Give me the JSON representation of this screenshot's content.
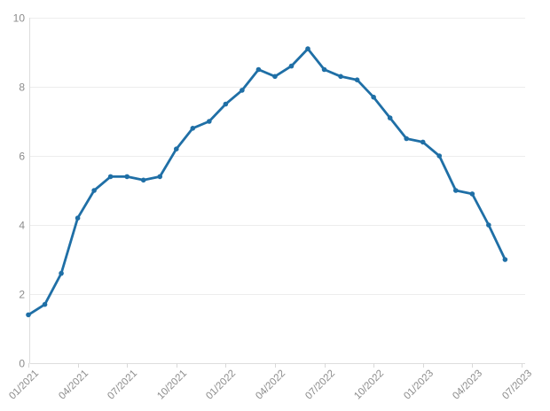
{
  "chart_data": {
    "type": "line",
    "title": "",
    "legend": "none",
    "grid": true,
    "marker": "circle",
    "x": [
      "01/2021",
      "02/2021",
      "03/2021",
      "04/2021",
      "05/2021",
      "06/2021",
      "07/2021",
      "08/2021",
      "09/2021",
      "10/2021",
      "11/2021",
      "12/2021",
      "01/2022",
      "02/2022",
      "03/2022",
      "04/2022",
      "05/2022",
      "06/2022",
      "07/2022",
      "08/2022",
      "09/2022",
      "10/2022",
      "11/2022",
      "12/2022",
      "01/2023",
      "02/2023",
      "03/2023",
      "04/2023",
      "05/2023",
      "06/2023"
    ],
    "values": [
      1.4,
      1.7,
      2.6,
      4.2,
      5.0,
      5.4,
      5.4,
      5.3,
      5.4,
      6.2,
      6.8,
      7.0,
      7.5,
      7.9,
      8.5,
      8.3,
      8.6,
      9.1,
      8.5,
      8.3,
      8.2,
      7.7,
      7.1,
      6.5,
      6.4,
      6.0,
      5.0,
      4.9,
      4.0,
      3.0
    ],
    "x_tick_labels": [
      "01/2021",
      "04/2021",
      "07/2021",
      "10/2021",
      "01/2022",
      "04/2022",
      "07/2022",
      "10/2022",
      "01/2023",
      "04/2023",
      "07/2023"
    ],
    "x_tick_step_months": 3,
    "x_label_rotation_deg": -45,
    "y_ticks": [
      0,
      2,
      4,
      6,
      8,
      10
    ],
    "ylim": [
      0,
      10
    ],
    "xlabel": "",
    "ylabel": "",
    "colors": {
      "line": "#1f6fa6",
      "marker": "#1f6fa6",
      "grid": "#ededed",
      "axis": "#dddddd",
      "tick": "#d9d9d9",
      "label": "#8c8c8c",
      "background": "#ffffff"
    }
  }
}
